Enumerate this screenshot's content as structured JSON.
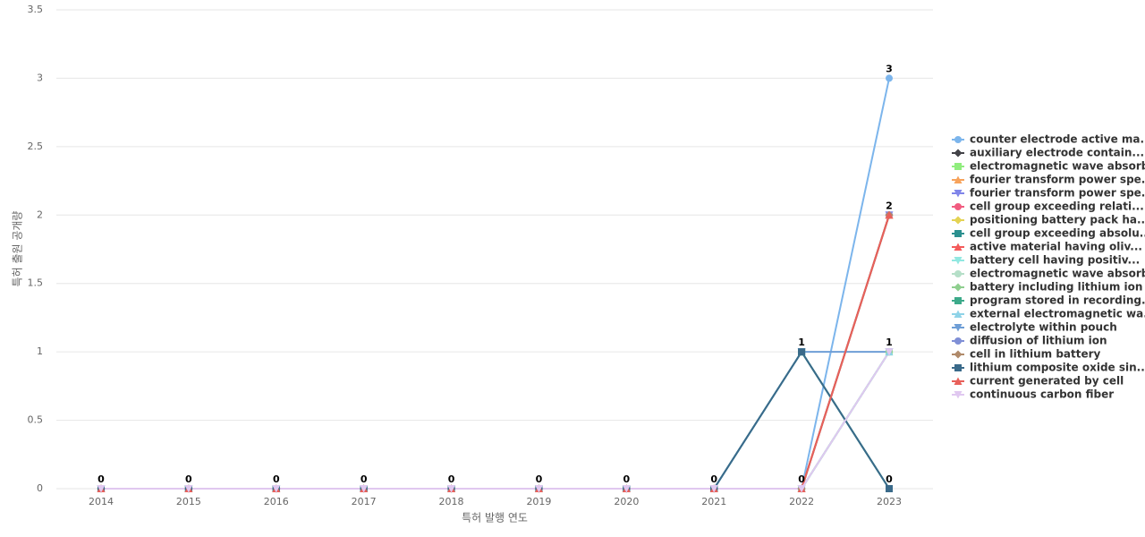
{
  "chart_data": {
    "type": "line",
    "x_label": "특허 발행 연도",
    "y_label": "특허 출원 공개량",
    "categories": [
      "2014",
      "2015",
      "2016",
      "2017",
      "2018",
      "2019",
      "2020",
      "2021",
      "2022",
      "2023"
    ],
    "ylim": [
      0,
      3.5
    ],
    "yticks": [
      0,
      0.5,
      1,
      1.5,
      2,
      2.5,
      3,
      3.5
    ],
    "grid": true,
    "legend": "right",
    "series": [
      {
        "name": "counter electrode active ma...",
        "color": "#7cb5ec",
        "marker": "circle",
        "values": [
          0,
          0,
          0,
          0,
          0,
          0,
          0,
          0,
          0,
          3
        ]
      },
      {
        "name": "auxiliary electrode contain...",
        "color": "#434348",
        "marker": "diamond",
        "values": [
          0,
          0,
          0,
          0,
          0,
          0,
          0,
          0,
          0,
          2
        ]
      },
      {
        "name": "electromagnetic wave absorb...",
        "color": "#90ed7d",
        "marker": "square",
        "values": [
          0,
          0,
          0,
          0,
          0,
          0,
          0,
          0,
          0,
          1
        ]
      },
      {
        "name": "fourier transform power spe...",
        "color": "#f7a35c",
        "marker": "triangle",
        "values": [
          0,
          0,
          0,
          0,
          0,
          0,
          0,
          0,
          0,
          2
        ]
      },
      {
        "name": "fourier transform power spe...",
        "color": "#8085e9",
        "marker": "triangle-down",
        "values": [
          0,
          0,
          0,
          0,
          0,
          0,
          0,
          0,
          0,
          2
        ]
      },
      {
        "name": "cell group exceeding relati...",
        "color": "#f15c80",
        "marker": "circle",
        "values": [
          0,
          0,
          0,
          0,
          0,
          0,
          0,
          0,
          0,
          2
        ]
      },
      {
        "name": "positioning battery pack ha...",
        "color": "#e4d354",
        "marker": "diamond",
        "values": [
          0,
          0,
          0,
          0,
          0,
          0,
          0,
          0,
          0,
          2
        ]
      },
      {
        "name": "cell group exceeding absolu...",
        "color": "#2b908f",
        "marker": "square",
        "values": [
          0,
          0,
          0,
          0,
          0,
          0,
          0,
          0,
          1,
          0
        ]
      },
      {
        "name": "active material having oliv...",
        "color": "#f45b5b",
        "marker": "triangle",
        "values": [
          0,
          0,
          0,
          0,
          0,
          0,
          0,
          0,
          0,
          2
        ]
      },
      {
        "name": "battery cell having positiv...",
        "color": "#91e8e1",
        "marker": "triangle-down",
        "values": [
          0,
          0,
          0,
          0,
          0,
          0,
          0,
          0,
          0,
          1
        ]
      },
      {
        "name": "electromagnetic wave absorb...",
        "color": "#b5dfc8",
        "marker": "circle",
        "values": [
          0,
          0,
          0,
          0,
          0,
          0,
          0,
          0,
          0,
          1
        ]
      },
      {
        "name": "battery including lithium ion",
        "color": "#8fcf8f",
        "marker": "diamond",
        "values": [
          0,
          0,
          0,
          0,
          0,
          0,
          0,
          0,
          0,
          1
        ]
      },
      {
        "name": "program stored in recording...",
        "color": "#3daa8a",
        "marker": "square",
        "values": [
          0,
          0,
          0,
          0,
          0,
          0,
          0,
          0,
          1,
          0
        ]
      },
      {
        "name": "external electromagnetic wa...",
        "color": "#8fd3e8",
        "marker": "triangle",
        "values": [
          0,
          0,
          0,
          0,
          0,
          0,
          0,
          0,
          0,
          1
        ]
      },
      {
        "name": "electrolyte within pouch",
        "color": "#6e9ed6",
        "marker": "triangle-down",
        "values": [
          0,
          0,
          0,
          0,
          0,
          0,
          0,
          0,
          1,
          1
        ]
      },
      {
        "name": "diffusion of lithium ion",
        "color": "#7f8fd6",
        "marker": "circle",
        "values": [
          0,
          0,
          0,
          0,
          0,
          0,
          0,
          0,
          0,
          2
        ]
      },
      {
        "name": "cell in lithium battery",
        "color": "#b08a6a",
        "marker": "diamond",
        "values": [
          0,
          0,
          0,
          0,
          0,
          0,
          0,
          0,
          0,
          2
        ]
      },
      {
        "name": "lithium composite oxide sin...",
        "color": "#3a6a8a",
        "marker": "square",
        "values": [
          0,
          0,
          0,
          0,
          0,
          0,
          0,
          0,
          1,
          0
        ]
      },
      {
        "name": "current generated by cell",
        "color": "#e8605a",
        "marker": "triangle",
        "values": [
          0,
          0,
          0,
          0,
          0,
          0,
          0,
          0,
          0,
          2
        ]
      },
      {
        "name": "continuous carbon fiber",
        "color": "#e0c8f0",
        "marker": "triangle-down",
        "values": [
          0,
          0,
          0,
          0,
          0,
          0,
          0,
          0,
          0,
          1
        ]
      }
    ]
  }
}
